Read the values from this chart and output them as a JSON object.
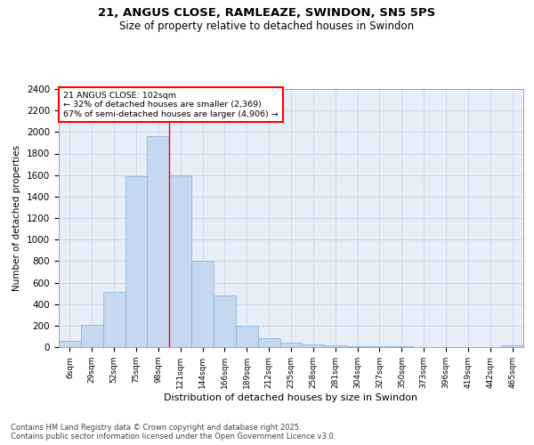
{
  "title1": "21, ANGUS CLOSE, RAMLEAZE, SWINDON, SN5 5PS",
  "title2": "Size of property relative to detached houses in Swindon",
  "xlabel": "Distribution of detached houses by size in Swindon",
  "ylabel": "Number of detached properties",
  "categories": [
    "6sqm",
    "29sqm",
    "52sqm",
    "75sqm",
    "98sqm",
    "121sqm",
    "144sqm",
    "166sqm",
    "189sqm",
    "212sqm",
    "235sqm",
    "258sqm",
    "281sqm",
    "304sqm",
    "327sqm",
    "350sqm",
    "373sqm",
    "396sqm",
    "419sqm",
    "442sqm",
    "465sqm"
  ],
  "values": [
    55,
    210,
    510,
    1590,
    1960,
    1600,
    800,
    480,
    200,
    85,
    40,
    25,
    20,
    12,
    8,
    5,
    3,
    2,
    1,
    1,
    15
  ],
  "bar_color": "#c5d8f0",
  "bar_edge_color": "#7bafd4",
  "grid_color": "#c8d4e8",
  "background_color": "#e8eef8",
  "vline_x_index": 4.5,
  "annotation_title": "21 ANGUS CLOSE: 102sqm",
  "annotation_line1": "← 32% of detached houses are smaller (2,369)",
  "annotation_line2": "67% of semi-detached houses are larger (4,906) →",
  "ylim": [
    0,
    2400
  ],
  "yticks": [
    0,
    200,
    400,
    600,
    800,
    1000,
    1200,
    1400,
    1600,
    1800,
    2000,
    2200,
    2400
  ],
  "footer1": "Contains HM Land Registry data © Crown copyright and database right 2025.",
  "footer2": "Contains public sector information licensed under the Open Government Licence v3.0."
}
